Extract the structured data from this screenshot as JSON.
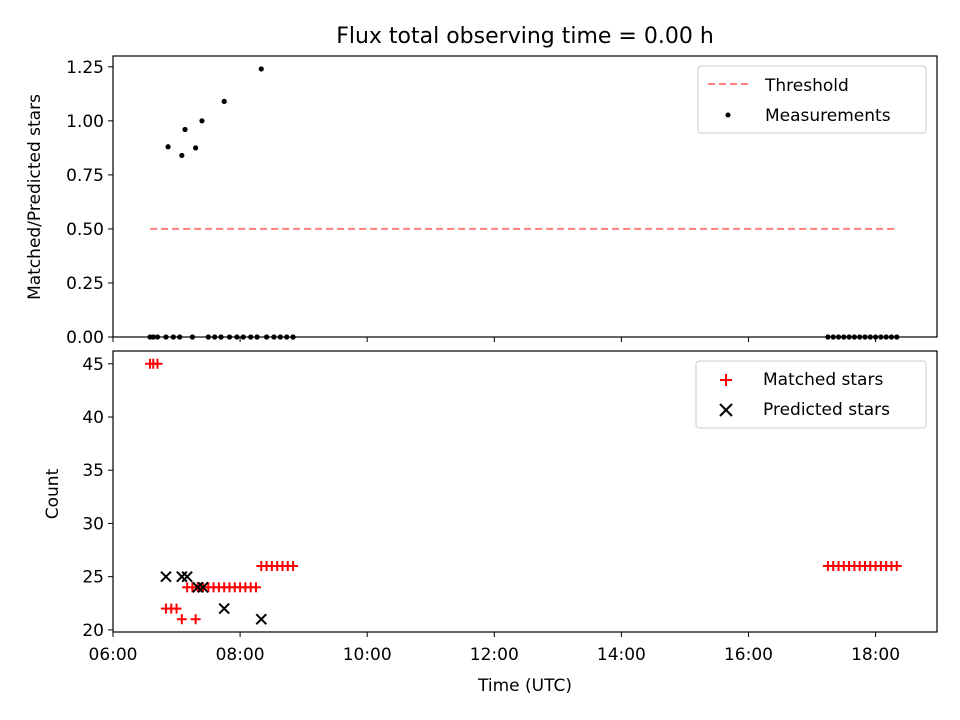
{
  "chart_data": [
    {
      "type": "scatter",
      "title": "Flux total observing time = 0.00 h",
      "ylabel": "Matched/Predicted stars",
      "xlabel": "",
      "x_unit": "hours UTC",
      "xlim": [
        "06:00",
        "18:58"
      ],
      "ylim": [
        0,
        1.3
      ],
      "yticks": [
        "0.00",
        "0.25",
        "0.50",
        "0.75",
        "1.00",
        "1.25"
      ],
      "legend_position": "upper right",
      "threshold": {
        "name": "Threshold",
        "color": "#ff7f7f",
        "style": "dashed",
        "y": 0.5,
        "x_range": [
          "06:35",
          "18:20"
        ]
      },
      "series": [
        {
          "name": "Measurements",
          "color": "#000000",
          "marker": "dot",
          "points": [
            [
              "06:35",
              0
            ],
            [
              "06:38",
              0
            ],
            [
              "06:42",
              0
            ],
            [
              "06:50",
              0
            ],
            [
              "06:57",
              0
            ],
            [
              "07:03",
              0
            ],
            [
              "06:52",
              0.88
            ],
            [
              "07:05",
              0.84
            ],
            [
              "07:08",
              0.96
            ],
            [
              "07:18",
              0.875
            ],
            [
              "07:24",
              1.0
            ],
            [
              "07:45",
              1.09
            ],
            [
              "08:20",
              1.24
            ],
            [
              "07:15",
              0
            ],
            [
              "07:30",
              0
            ],
            [
              "07:36",
              0
            ],
            [
              "07:42",
              0
            ],
            [
              "07:50",
              0
            ],
            [
              "07:57",
              0
            ],
            [
              "08:03",
              0
            ],
            [
              "08:10",
              0
            ],
            [
              "08:16",
              0
            ],
            [
              "08:25",
              0
            ],
            [
              "08:32",
              0
            ],
            [
              "08:38",
              0
            ],
            [
              "08:44",
              0
            ],
            [
              "08:50",
              0
            ],
            [
              "17:15",
              0
            ],
            [
              "17:20",
              0
            ],
            [
              "17:25",
              0
            ],
            [
              "17:30",
              0
            ],
            [
              "17:35",
              0
            ],
            [
              "17:40",
              0
            ],
            [
              "17:45",
              0
            ],
            [
              "17:50",
              0
            ],
            [
              "17:55",
              0
            ],
            [
              "18:00",
              0
            ],
            [
              "18:05",
              0
            ],
            [
              "18:10",
              0
            ],
            [
              "18:15",
              0
            ],
            [
              "18:20",
              0
            ]
          ]
        }
      ]
    },
    {
      "type": "scatter",
      "title": "",
      "ylabel": "Count",
      "xlabel": "Time (UTC)",
      "x_unit": "hours UTC",
      "xlim": [
        "06:00",
        "18:58"
      ],
      "ylim": [
        19.8,
        46.2
      ],
      "yticks": [
        "20",
        "25",
        "30",
        "35",
        "40",
        "45"
      ],
      "xticks": [
        "06:00",
        "08:00",
        "10:00",
        "12:00",
        "14:00",
        "16:00",
        "18:00"
      ],
      "legend_position": "upper right",
      "series": [
        {
          "name": "Matched stars",
          "color": "#ff0000",
          "marker": "plus",
          "points": [
            [
              "06:35",
              45
            ],
            [
              "06:38",
              45
            ],
            [
              "06:42",
              45
            ],
            [
              "06:50",
              22
            ],
            [
              "06:55",
              22
            ],
            [
              "07:00",
              22
            ],
            [
              "07:05",
              21
            ],
            [
              "07:18",
              21
            ],
            [
              "07:10",
              24
            ],
            [
              "07:15",
              24
            ],
            [
              "07:20",
              24
            ],
            [
              "07:25",
              24
            ],
            [
              "07:30",
              24
            ],
            [
              "07:35",
              24
            ],
            [
              "07:40",
              24
            ],
            [
              "07:45",
              24
            ],
            [
              "07:50",
              24
            ],
            [
              "07:55",
              24
            ],
            [
              "08:00",
              24
            ],
            [
              "08:05",
              24
            ],
            [
              "08:10",
              24
            ],
            [
              "08:15",
              24
            ],
            [
              "08:20",
              26
            ],
            [
              "08:25",
              26
            ],
            [
              "08:30",
              26
            ],
            [
              "08:35",
              26
            ],
            [
              "08:40",
              26
            ],
            [
              "08:45",
              26
            ],
            [
              "08:50",
              26
            ],
            [
              "17:15",
              26
            ],
            [
              "17:20",
              26
            ],
            [
              "17:25",
              26
            ],
            [
              "17:30",
              26
            ],
            [
              "17:35",
              26
            ],
            [
              "17:40",
              26
            ],
            [
              "17:45",
              26
            ],
            [
              "17:50",
              26
            ],
            [
              "17:55",
              26
            ],
            [
              "18:00",
              26
            ],
            [
              "18:05",
              26
            ],
            [
              "18:10",
              26
            ],
            [
              "18:15",
              26
            ],
            [
              "18:20",
              26
            ]
          ]
        },
        {
          "name": "Predicted stars",
          "color": "#000000",
          "marker": "x",
          "points": [
            [
              "06:50",
              25
            ],
            [
              "07:05",
              25
            ],
            [
              "07:10",
              25
            ],
            [
              "07:20",
              24
            ],
            [
              "07:25",
              24
            ],
            [
              "07:45",
              22
            ],
            [
              "08:20",
              21
            ]
          ]
        }
      ]
    }
  ]
}
